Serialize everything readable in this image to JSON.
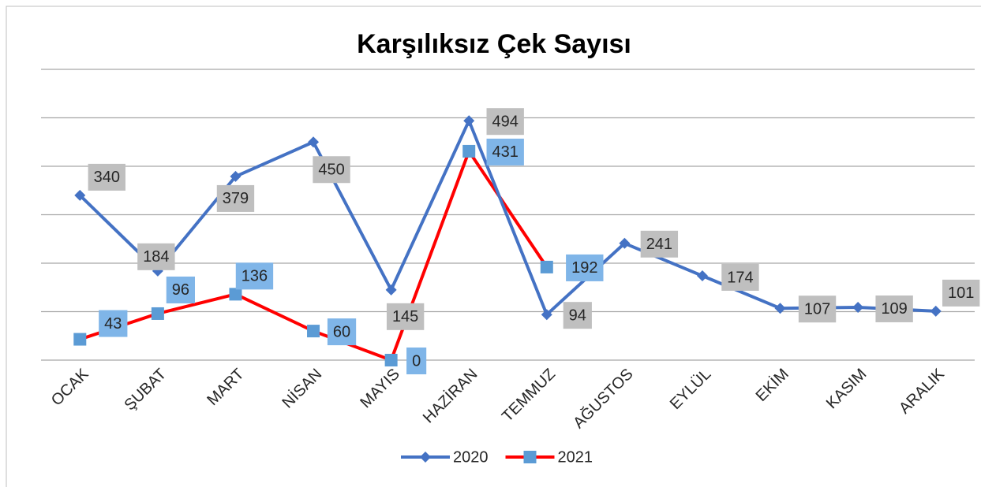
{
  "chart_data": {
    "type": "line",
    "title": "Karşılıksız Çek Sayısı",
    "categories": [
      "OCAK",
      "ŞUBAT",
      "MART",
      "NİSAN",
      "MAYIS",
      "HAZİRAN",
      "TEMMUZ",
      "AĞUSTOS",
      "EYLÜL",
      "EKİM",
      "KASIM",
      "ARALIK"
    ],
    "series": [
      {
        "name": "2020",
        "color": "#4472c4",
        "label_color": "#bfbfbf",
        "values": [
          340,
          184,
          379,
          450,
          145,
          494,
          94,
          241,
          174,
          107,
          109,
          101
        ]
      },
      {
        "name": "2021",
        "color": "#ff0000",
        "marker_color": "#5b9bd5",
        "label_color": "#7fb5e8",
        "values": [
          43,
          96,
          136,
          60,
          0,
          431,
          192,
          null,
          null,
          null,
          null,
          null
        ]
      }
    ],
    "ylim": [
      0,
      600
    ],
    "yticks": [
      0,
      100,
      200,
      300,
      400,
      500,
      600
    ],
    "grid": true,
    "legend": "bottom"
  }
}
